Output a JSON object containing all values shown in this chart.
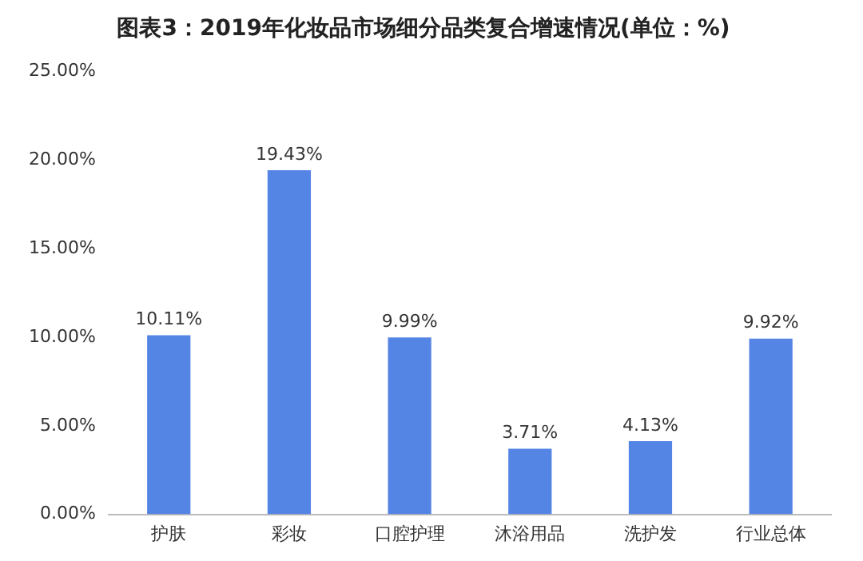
{
  "chart_data": {
    "type": "bar",
    "title": "图表3：2019年化妆品市场细分品类复合增速情况(单位：%)",
    "categories": [
      "护肤",
      "彩妆",
      "口腔护理",
      "沐浴用品",
      "洗护发",
      "行业总体"
    ],
    "values": [
      10.11,
      19.43,
      9.99,
      3.71,
      4.13,
      9.92
    ],
    "value_labels": [
      "10.11%",
      "19.43%",
      "9.99%",
      "3.71%",
      "4.13%",
      "9.92%"
    ],
    "color": "#5585e4",
    "ylim": [
      0,
      25
    ],
    "yticks": [
      {
        "value": 0,
        "label": "0.00%"
      },
      {
        "value": 5,
        "label": "5.00%"
      },
      {
        "value": 10,
        "label": "10.00%"
      },
      {
        "value": 15,
        "label": "15.00%"
      },
      {
        "value": 20,
        "label": "20.00%"
      },
      {
        "value": 25,
        "label": "25.00%"
      }
    ],
    "grid": false,
    "legend": false
  }
}
